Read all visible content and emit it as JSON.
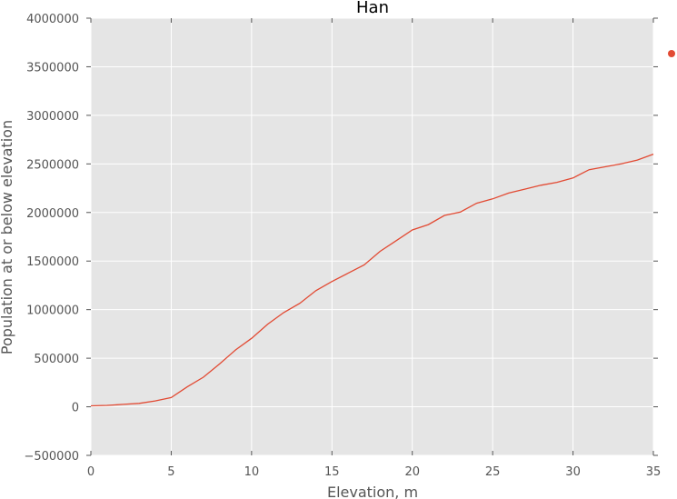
{
  "chart_data": {
    "type": "line",
    "title": "Han",
    "xlabel": "Elevation, m",
    "ylabel": "Population at or below elevation",
    "xlim": [
      0,
      35
    ],
    "ylim": [
      -500000,
      4000000
    ],
    "xticks": [
      0,
      5,
      10,
      15,
      20,
      25,
      30,
      35
    ],
    "yticks": [
      -500000,
      0,
      500000,
      1000000,
      1500000,
      2000000,
      2500000,
      3000000,
      3500000,
      4000000
    ],
    "grid": true,
    "legend": "outside-right",
    "series": [
      {
        "color": "#e24a33",
        "x": [
          0,
          1,
          2,
          3,
          4,
          5,
          6,
          7,
          8,
          9,
          10,
          11,
          12,
          13,
          14,
          15,
          16,
          17,
          18,
          19,
          20,
          21,
          22,
          23,
          24,
          25,
          26,
          27,
          28,
          29,
          30,
          31,
          32,
          33,
          34,
          35
        ],
        "y": [
          10000,
          15000,
          25000,
          35000,
          60000,
          95000,
          205000,
          305000,
          440000,
          585000,
          705000,
          850000,
          970000,
          1065000,
          1195000,
          1290000,
          1375000,
          1460000,
          1600000,
          1710000,
          1820000,
          1875000,
          1970000,
          2005000,
          2095000,
          2140000,
          2200000,
          2240000,
          2280000,
          2310000,
          2355000,
          2440000,
          2470000,
          2500000,
          2540000,
          2600000
        ]
      }
    ]
  }
}
